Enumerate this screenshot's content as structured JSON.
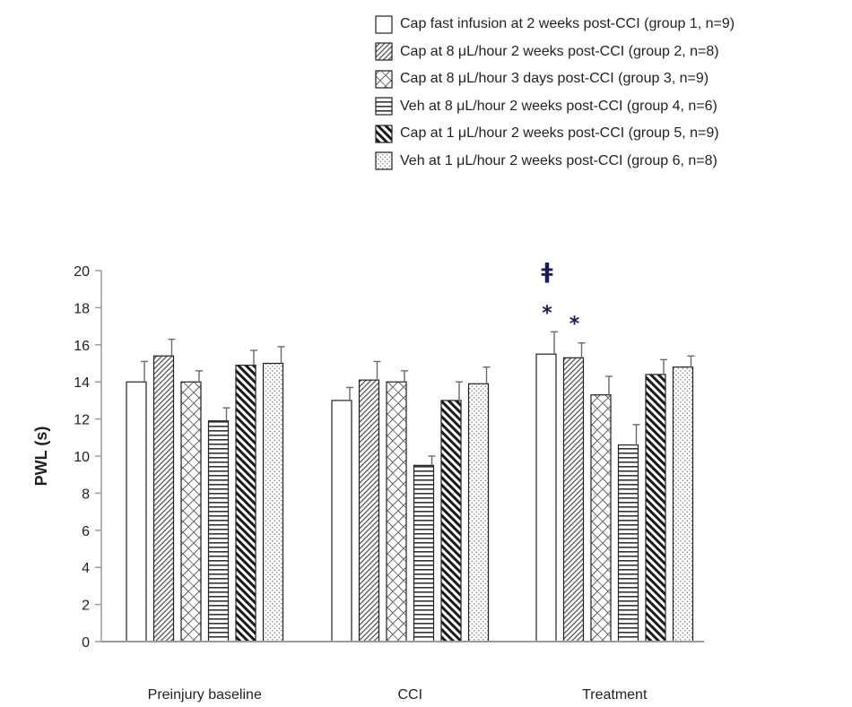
{
  "chart_data": {
    "type": "bar",
    "title": "",
    "xlabel": "",
    "ylabel": "PWL (s)",
    "ylim": [
      0,
      20
    ],
    "yticks": [
      0,
      2,
      4,
      6,
      8,
      10,
      12,
      14,
      16,
      18,
      20
    ],
    "grid": false,
    "legend_position": "top-right",
    "categories": [
      "Preinjury baseline",
      "CCI",
      "Treatment"
    ],
    "series": [
      {
        "name": "Cap fast infusion at 2 weeks post-CCI (group 1, n=9)",
        "pattern": "blank",
        "values": [
          14.0,
          13.0,
          15.5
        ],
        "errors": [
          1.1,
          0.7,
          1.2
        ]
      },
      {
        "name": "Cap at 8 μL/hour 2 weeks post-CCI (group 2, n=8)",
        "pattern": "fine-diagonal",
        "values": [
          15.4,
          14.1,
          15.3
        ],
        "errors": [
          0.9,
          1.0,
          0.8
        ]
      },
      {
        "name": "Cap at 8 μL/hour 3 days post-CCI (group 3, n=9)",
        "pattern": "diamond-lattice",
        "values": [
          14.0,
          14.0,
          13.3
        ],
        "errors": [
          0.6,
          0.6,
          1.0
        ]
      },
      {
        "name": "Veh at 8 μL/hour 2 weeks post-CCI (group 4, n=6)",
        "pattern": "horizontal",
        "values": [
          11.9,
          9.5,
          10.6
        ],
        "errors": [
          0.7,
          0.5,
          1.1
        ]
      },
      {
        "name": "Cap at 1 μL/hour 2 weeks post-CCI (group 5, n=9)",
        "pattern": "bold-diagonal",
        "values": [
          14.9,
          13.0,
          14.4
        ],
        "errors": [
          0.8,
          1.0,
          0.8
        ]
      },
      {
        "name": "Veh at 1 μL/hour 2 weeks post-CCI (group 6, n=8)",
        "pattern": "dots",
        "values": [
          15.0,
          13.9,
          14.8
        ],
        "errors": [
          0.9,
          0.9,
          0.6
        ]
      }
    ],
    "annotations": [
      {
        "text": "ǂ",
        "category": "Treatment",
        "series_index": 0,
        "level": 2
      },
      {
        "text": "*",
        "category": "Treatment",
        "series_index": 0,
        "level": 1
      },
      {
        "text": "*",
        "category": "Treatment",
        "series_index": 1,
        "level": 1
      }
    ]
  },
  "colors": {
    "bar_outline": "#231f20",
    "axis": "#9a9a9a",
    "annotation": "#1c1c5a",
    "text": "#231f20"
  }
}
